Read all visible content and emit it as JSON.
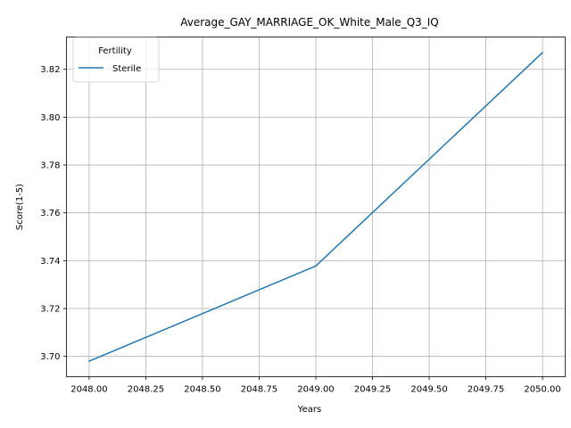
{
  "chart_data": {
    "type": "line",
    "title": "Average_GAY_MARRIAGE_OK_White_Male_Q3_IQ",
    "xlabel": "Years",
    "ylabel": "Score(1-5)",
    "x": [
      2048,
      2049,
      2050
    ],
    "series": [
      {
        "name": "Sterile",
        "values": [
          3.698,
          3.7378,
          3.827
        ],
        "color": "#1f77b4"
      }
    ],
    "xlim": [
      2047.9,
      2050.1
    ],
    "ylim": [
      3.6915,
      3.8335
    ],
    "xticks": [
      2048.0,
      2048.25,
      2048.5,
      2048.75,
      2049.0,
      2049.25,
      2049.5,
      2049.75,
      2050.0
    ],
    "xtick_labels": [
      "2048.00",
      "2048.25",
      "2048.50",
      "2048.75",
      "2049.00",
      "2049.25",
      "2049.50",
      "2049.75",
      "2050.00"
    ],
    "yticks": [
      3.7,
      3.72,
      3.74,
      3.76,
      3.78,
      3.8,
      3.82
    ],
    "ytick_labels": [
      "3.70",
      "3.72",
      "3.74",
      "3.76",
      "3.78",
      "3.80",
      "3.82"
    ],
    "grid": true,
    "legend": {
      "title": "Fertility",
      "placement": "top-left"
    }
  }
}
